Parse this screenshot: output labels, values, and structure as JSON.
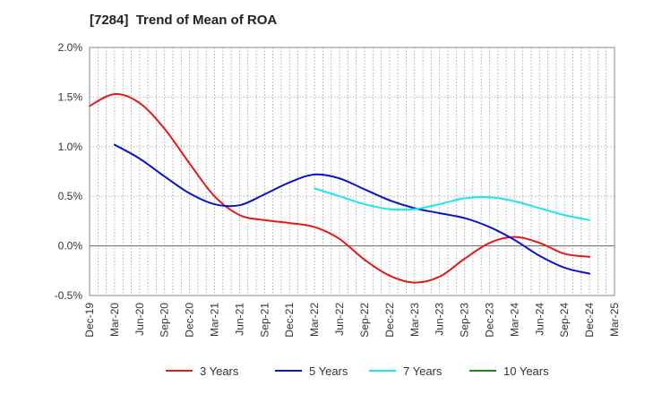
{
  "chart_data": {
    "type": "line",
    "title": "[7284]  Trend of Mean of ROA",
    "xlabel": "",
    "ylabel": "",
    "x": [
      "Dec-19",
      "Mar-20",
      "Jun-20",
      "Sep-20",
      "Dec-20",
      "Mar-21",
      "Jun-21",
      "Sep-21",
      "Dec-21",
      "Mar-22",
      "Jun-22",
      "Sep-22",
      "Dec-22",
      "Mar-23",
      "Jun-23",
      "Sep-23",
      "Dec-23",
      "Mar-24",
      "Jun-24",
      "Sep-24",
      "Dec-24",
      "Mar-25"
    ],
    "ylim": [
      -0.5,
      2.0
    ],
    "yticks": [
      -0.5,
      0.0,
      0.5,
      1.0,
      1.5,
      2.0
    ],
    "ytick_labels": [
      "-0.5%",
      "0.0%",
      "0.5%",
      "1.0%",
      "1.5%",
      "2.0%"
    ],
    "grid": true,
    "legend_position": "bottom",
    "series": [
      {
        "name": "3 Years",
        "color": "#e31a1c",
        "values": [
          1.41,
          1.53,
          1.44,
          1.18,
          0.83,
          0.5,
          0.31,
          0.26,
          0.23,
          0.19,
          0.07,
          -0.14,
          -0.3,
          -0.37,
          -0.31,
          -0.13,
          0.03,
          0.09,
          0.03,
          -0.08,
          -0.11,
          null
        ]
      },
      {
        "name": "5 Years",
        "color": "#0a14c8",
        "values": [
          null,
          1.02,
          0.88,
          0.7,
          0.53,
          0.42,
          0.41,
          0.52,
          0.64,
          0.72,
          0.68,
          0.57,
          0.46,
          0.38,
          0.33,
          0.28,
          0.19,
          0.06,
          -0.1,
          -0.22,
          -0.28,
          null
        ]
      },
      {
        "name": "7 Years",
        "color": "#1ee6e6",
        "values": [
          null,
          null,
          null,
          null,
          null,
          null,
          null,
          null,
          null,
          0.58,
          0.5,
          0.42,
          0.37,
          0.37,
          0.42,
          0.48,
          0.49,
          0.45,
          0.38,
          0.31,
          0.26,
          null
        ]
      },
      {
        "name": "10 Years",
        "color": "#1a8c1a",
        "values": [
          null,
          null,
          null,
          null,
          null,
          null,
          null,
          null,
          null,
          null,
          null,
          null,
          null,
          null,
          null,
          null,
          null,
          null,
          null,
          null,
          null,
          null
        ]
      }
    ]
  }
}
